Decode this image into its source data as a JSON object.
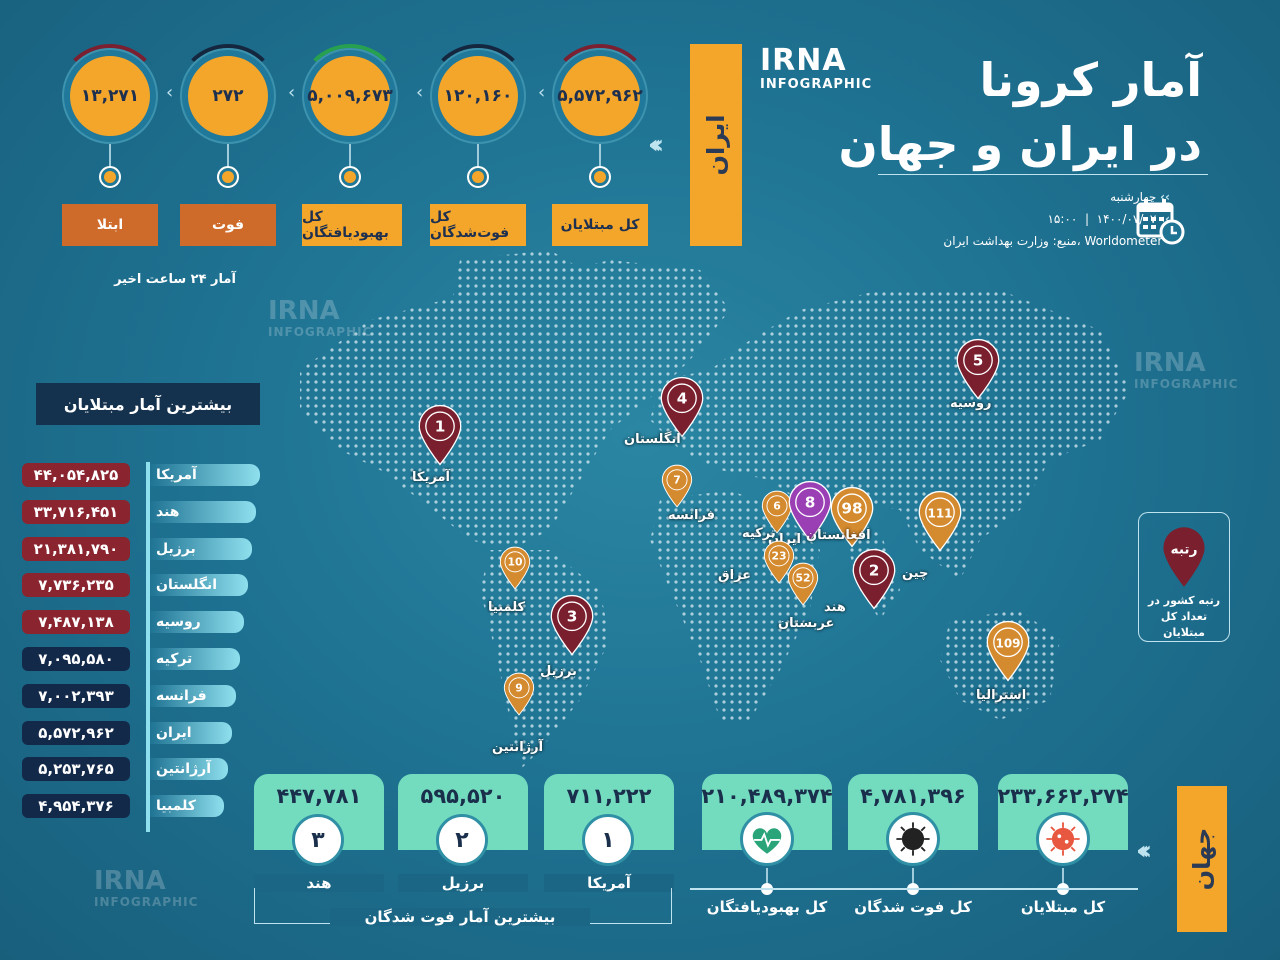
{
  "title": {
    "line1": "آمار کرونا",
    "line2": "در ایران و جهان"
  },
  "logo": {
    "brand": "IRNA",
    "sub": "INFOGRAPHIC"
  },
  "info": {
    "day": "چهارشنبه",
    "date": "۱۴۰۰/۰۷/۰۷",
    "time": "۱۵:۰۰",
    "sep": "|",
    "source": "منبع: وزارت بهداشت ایران، Worldometer"
  },
  "iran": {
    "label": "ایران",
    "note": "آمار ۲۴ ساعت اخیر",
    "stats": [
      {
        "value": "۵,۵۷۲,۹۶۲",
        "label": "کل مبتلایان",
        "arc": "#7a2030"
      },
      {
        "value": "۱۲۰,۱۶۰",
        "label": "کل فوت‌شدگان",
        "arc": "#14273f"
      },
      {
        "value": "۵,۰۰۹,۶۷۳",
        "label": "کل بهبودیافتگان",
        "arc": "#27a050"
      },
      {
        "value": "۲۷۲",
        "label": "فوت",
        "arc": "#14273f"
      },
      {
        "value": "۱۳,۲۷۱",
        "label": "ابتلا",
        "arc": "#7a2030"
      }
    ]
  },
  "top_list": {
    "title": "بیشترین آمار مبتلایان",
    "items": [
      {
        "name": "آمریکا",
        "value": "۴۴,۰۵۴,۸۲۵",
        "tone": "r"
      },
      {
        "name": "هند",
        "value": "۳۳,۷۱۶,۴۵۱",
        "tone": "r"
      },
      {
        "name": "برزیل",
        "value": "۲۱,۳۸۱,۷۹۰",
        "tone": "r"
      },
      {
        "name": "انگلستان",
        "value": "۷,۷۳۶,۲۳۵",
        "tone": "r"
      },
      {
        "name": "روسیه",
        "value": "۷,۴۸۷,۱۳۸",
        "tone": "r"
      },
      {
        "name": "ترکیه",
        "value": "۷,۰۹۵,۵۸۰",
        "tone": "b"
      },
      {
        "name": "فرانسه",
        "value": "۷,۰۰۲,۳۹۳",
        "tone": "b"
      },
      {
        "name": "ایران",
        "value": "۵,۵۷۲,۹۶۲",
        "tone": "b"
      },
      {
        "name": "آرژانتین",
        "value": "۵,۲۵۳,۷۶۵",
        "tone": "b"
      },
      {
        "name": "کلمبیا",
        "value": "۴,۹۵۴,۳۷۶",
        "tone": "b"
      }
    ]
  },
  "map_pins": [
    {
      "rank": "1",
      "name": "آمریکا",
      "color": "#7a1f2e"
    },
    {
      "rank": "2",
      "name": "هند",
      "color": "#7a1f2e"
    },
    {
      "rank": "3",
      "name": "برزیل",
      "color": "#7a1f2e"
    },
    {
      "rank": "4",
      "name": "انگلستان",
      "color": "#7a1f2e"
    },
    {
      "rank": "5",
      "name": "روسیه",
      "color": "#7a1f2e"
    },
    {
      "rank": "6",
      "name": "ترکیه",
      "color": "#d48a2e"
    },
    {
      "rank": "7",
      "name": "فرانسه",
      "color": "#d48a2e"
    },
    {
      "rank": "8",
      "name": "ایران",
      "color": "#9b3fb5"
    },
    {
      "rank": "9",
      "name": "آرژانتین",
      "color": "#d48a2e"
    },
    {
      "rank": "10",
      "name": "کلمبیا",
      "color": "#d48a2e"
    },
    {
      "rank": "23",
      "name": "عراق",
      "color": "#d48a2e"
    },
    {
      "rank": "52",
      "name": "عربستان",
      "color": "#d48a2e"
    },
    {
      "rank": "98",
      "name": "افغانستان",
      "color": "#d48a2e"
    },
    {
      "rank": "111",
      "name": "چین",
      "color": "#d48a2e"
    },
    {
      "rank": "109",
      "name": "استرالیا",
      "color": "#d48a2e"
    }
  ],
  "legend": {
    "title": "رتبه",
    "desc": "رتبه کشور در تعداد کل مبتلایان"
  },
  "world": {
    "label": "جهان",
    "stats": [
      {
        "value": "۲۳۳,۶۶۲,۲۷۴",
        "label": "کل مبتلایان",
        "icon": "virus-icon"
      },
      {
        "value": "۴,۷۸۱,۳۹۶",
        "label": "کل فوت شدگان",
        "icon": "dark-virus-icon"
      },
      {
        "value": "۲۱۰,۴۸۹,۳۷۴",
        "label": "کل بهبودیافتگان",
        "icon": "heartbeat-icon"
      }
    ],
    "deaths_title": "بیشترین آمار فوت شدگان",
    "deaths": [
      {
        "rank": "۱",
        "value": "۷۱۱,۲۲۲",
        "name": "آمریکا"
      },
      {
        "rank": "۲",
        "value": "۵۹۵,۵۲۰",
        "name": "برزیل"
      },
      {
        "rank": "۳",
        "value": "۴۴۷,۷۸۱",
        "name": "هند"
      }
    ]
  }
}
